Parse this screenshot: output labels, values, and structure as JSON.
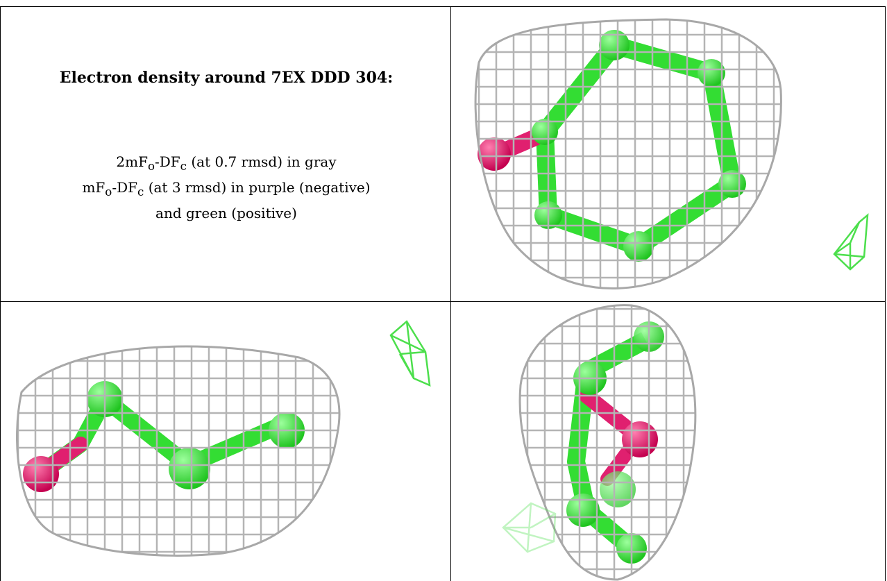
{
  "caption": {
    "title": "Electron density around 7EX DDD 304:",
    "line1": {
      "prefix": "2mF",
      "sub1": "o",
      "mid": "-DF",
      "sub2": "c",
      "suffix": " (at 0.7 rmsd) in gray"
    },
    "line2": {
      "prefix": "mF",
      "sub1": "o",
      "mid": "-DF",
      "sub2": "c",
      "suffix": " (at 3 rmsd) in purple (negative)"
    },
    "line3": "and green (positive)"
  },
  "colors": {
    "mesh": "#b4b4b4",
    "carbon": "#3ee63e",
    "oxygen": "#ea1e74",
    "positive_density": "#4cdf4c",
    "border": "#000000"
  },
  "panels": [
    {
      "view": "top-right",
      "content": "density-mesh-view-1"
    },
    {
      "view": "bottom-left",
      "content": "density-mesh-view-2"
    },
    {
      "view": "bottom-right",
      "content": "density-mesh-view-3"
    }
  ]
}
